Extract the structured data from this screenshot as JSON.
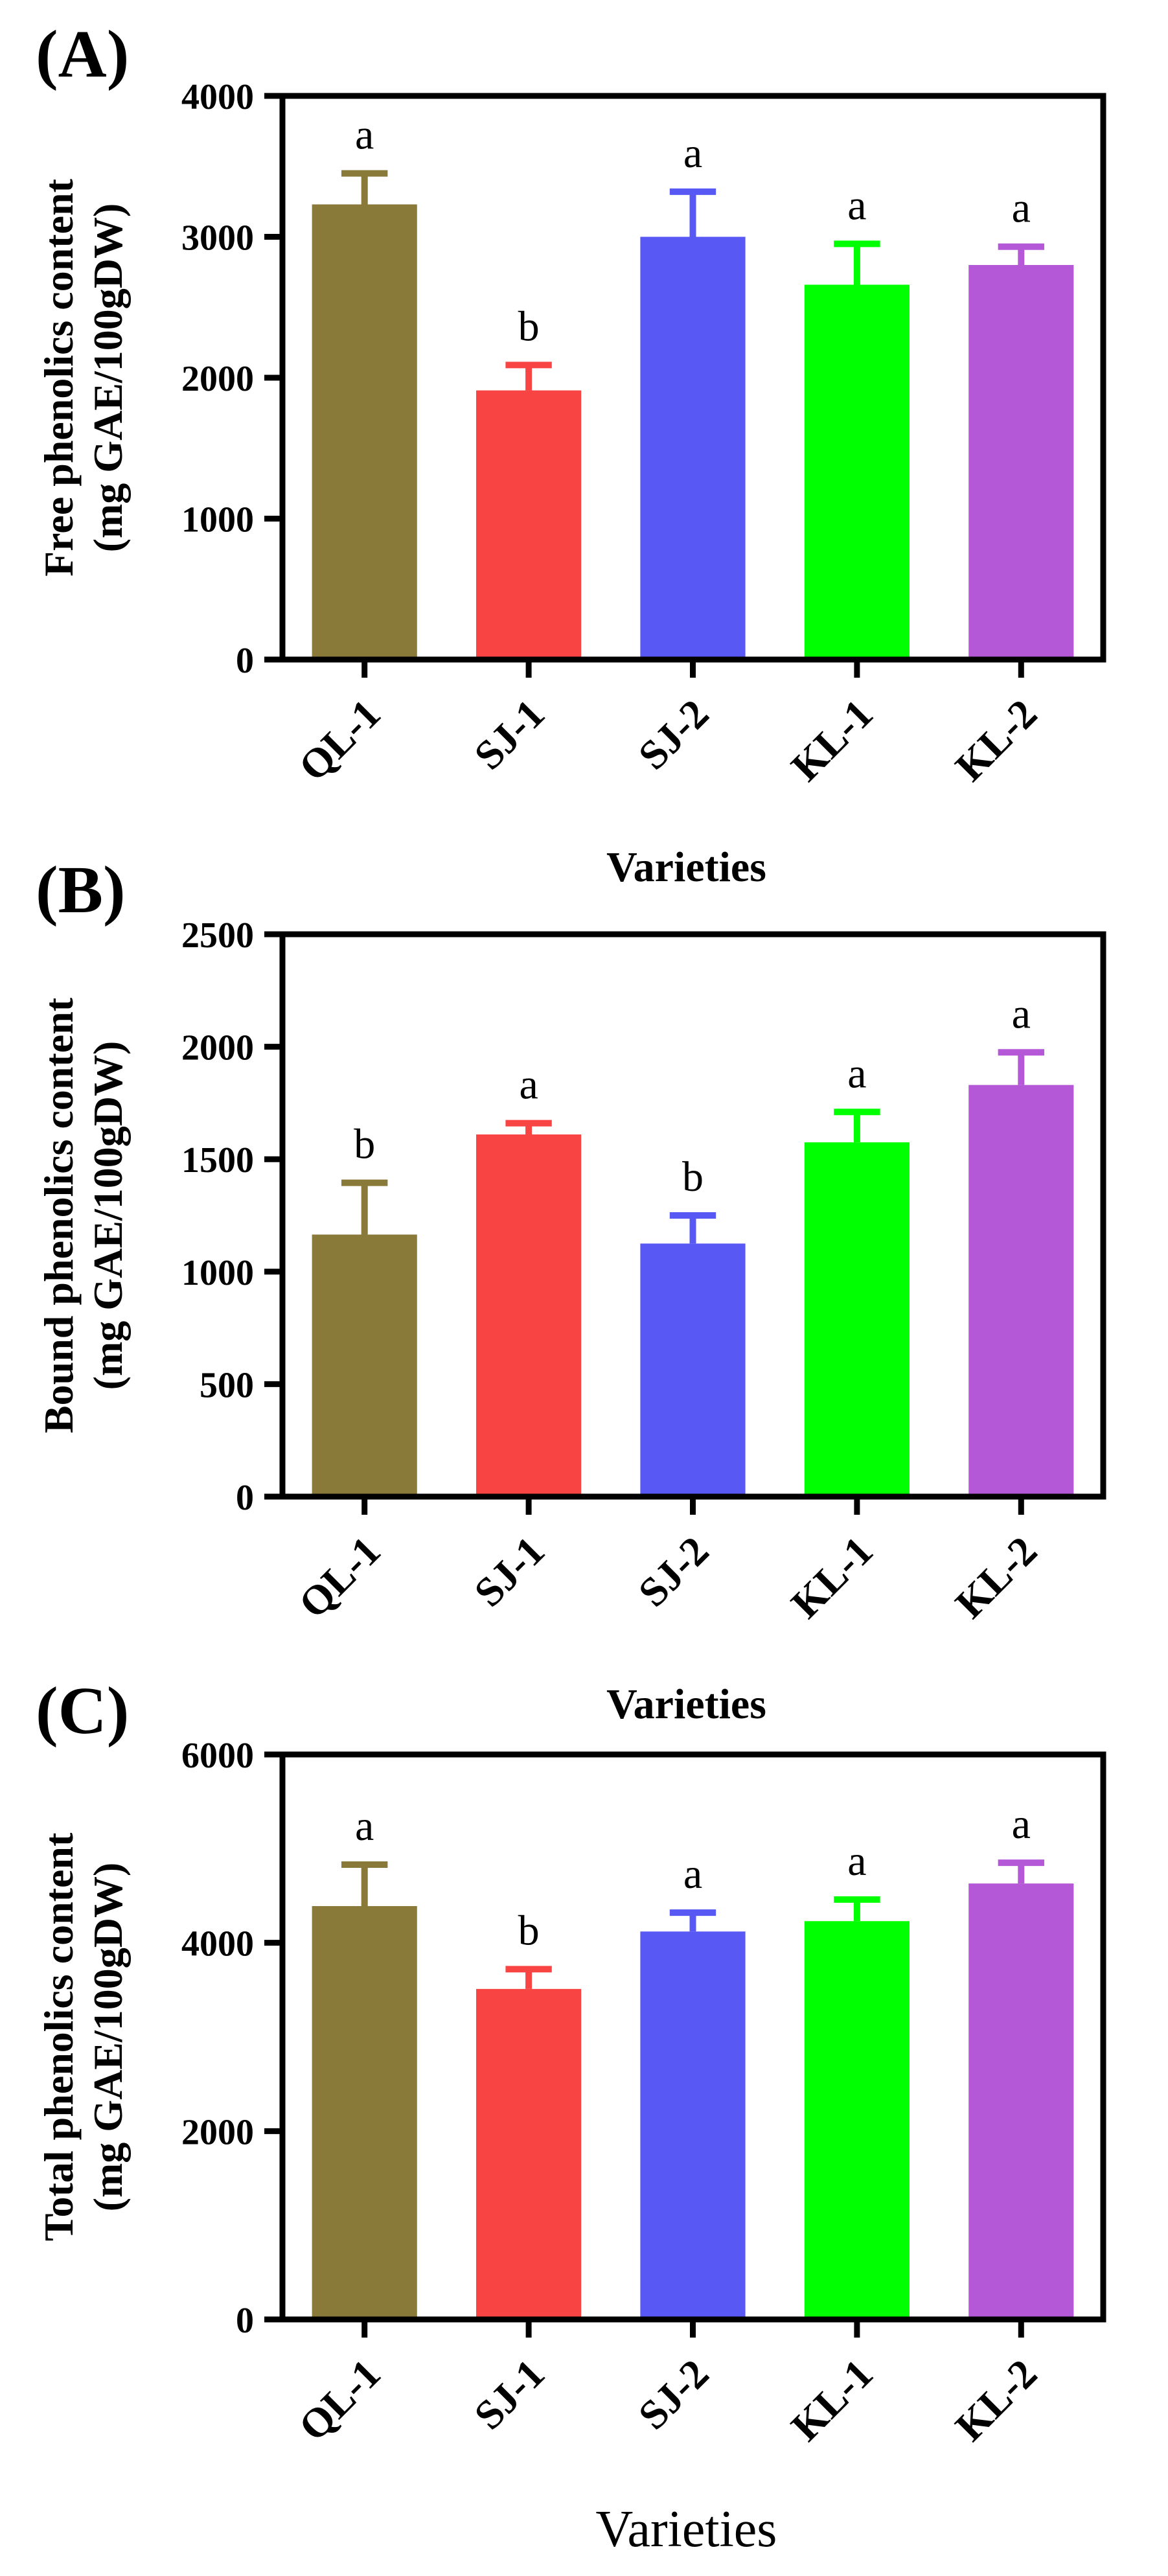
{
  "chart_data": [
    {
      "panel_label": "(A)",
      "type": "bar",
      "categories": [
        "QL-1",
        "SJ-1",
        "SJ-2",
        "KL-1",
        "KL-2"
      ],
      "values": [
        3230,
        1910,
        3000,
        2660,
        2800
      ],
      "errors": [
        220,
        180,
        320,
        290,
        130
      ],
      "significance": [
        "a",
        "b",
        "a",
        "a",
        "a"
      ],
      "ylabel": [
        "Free phenolics content",
        "(mg GAE/100gDW)"
      ],
      "xlabel": "Varieties",
      "ylim": [
        0,
        4000
      ],
      "yticks": [
        0,
        1000,
        2000,
        3000,
        4000
      ],
      "grid": false,
      "colors": [
        "#8a7a3a",
        "#f94444",
        "#5858f4",
        "#00ff00",
        "#b558d8"
      ]
    },
    {
      "panel_label": "(B)",
      "type": "bar",
      "categories": [
        "QL-1",
        "SJ-1",
        "SJ-2",
        "KL-1",
        "KL-2"
      ],
      "values": [
        1165,
        1610,
        1125,
        1575,
        1830
      ],
      "errors": [
        230,
        50,
        125,
        135,
        145
      ],
      "significance": [
        "b",
        "a",
        "b",
        "a",
        "a"
      ],
      "ylabel": [
        "Bound phenolics content",
        "(mg GAE/100gDW)"
      ],
      "xlabel": "Varieties",
      "ylim": [
        0,
        2500
      ],
      "yticks": [
        0,
        500,
        1000,
        1500,
        2000,
        2500
      ],
      "grid": false,
      "colors": [
        "#8a7a3a",
        "#f94444",
        "#5858f4",
        "#00ff00",
        "#b558d8"
      ]
    },
    {
      "panel_label": "(C)",
      "type": "bar",
      "categories": [
        "QL-1",
        "SJ-1",
        "SJ-2",
        "KL-1",
        "KL-2"
      ],
      "values": [
        4390,
        3510,
        4120,
        4230,
        4630
      ],
      "errors": [
        440,
        210,
        200,
        230,
        220
      ],
      "significance": [
        "a",
        "b",
        "a",
        "a",
        "a"
      ],
      "ylabel": [
        "Total phenolics content",
        "(mg GAE/100gDW)"
      ],
      "xlabel": "Varieties",
      "ylim": [
        0,
        6000
      ],
      "yticks": [
        0,
        2000,
        4000,
        6000
      ],
      "grid": false,
      "colors": [
        "#8a7a3a",
        "#f94444",
        "#5858f4",
        "#00ff00",
        "#b558d8"
      ]
    }
  ]
}
